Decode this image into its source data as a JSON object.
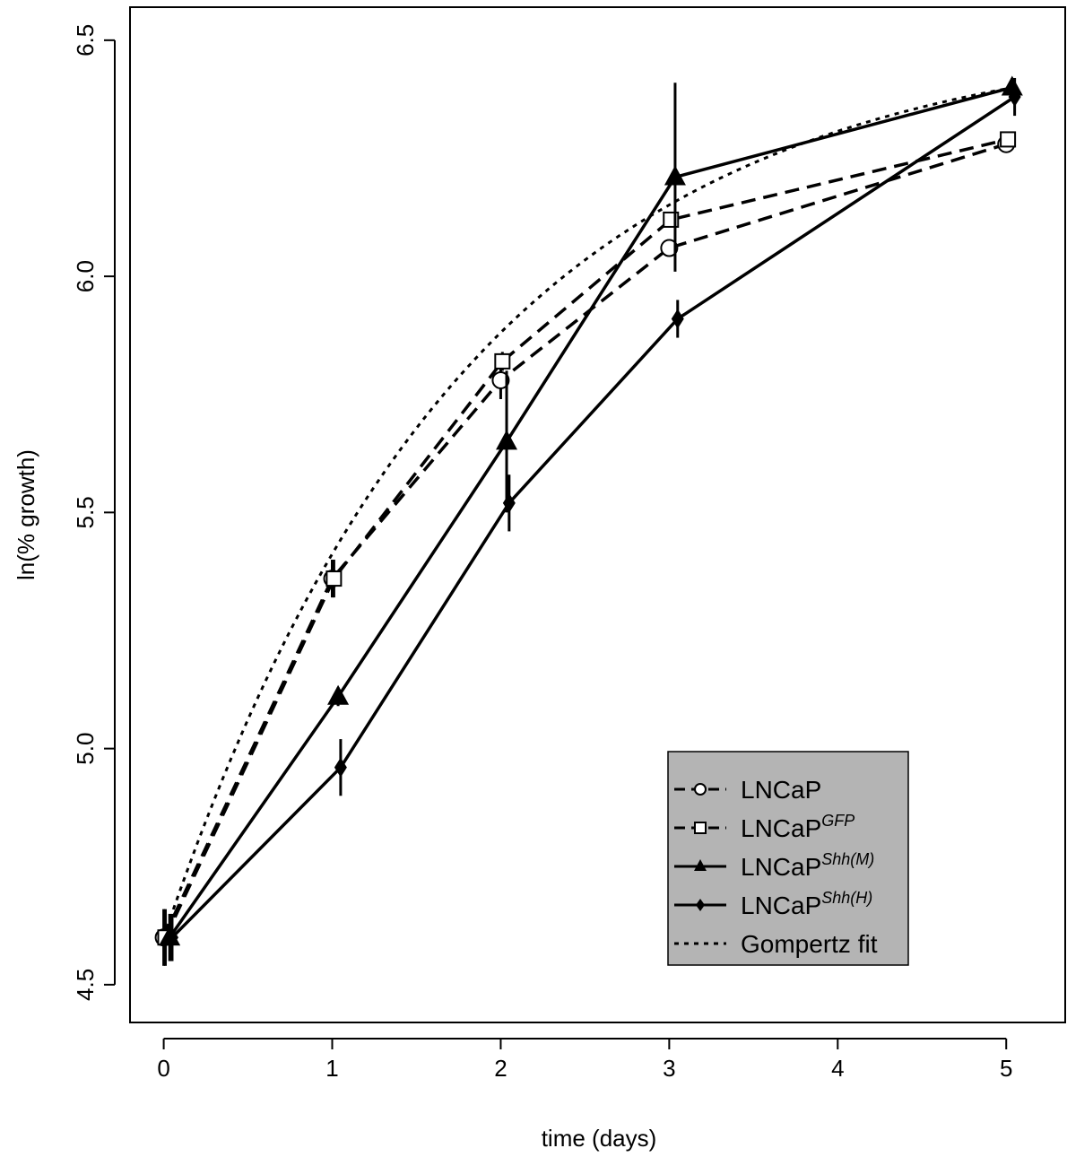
{
  "chart_data": {
    "type": "line",
    "xlabel": "time (days)",
    "ylabel": "ln(% growth)",
    "xlim": [
      -0.2,
      5.35
    ],
    "ylim": [
      4.42,
      6.57
    ],
    "xticks": [
      "0",
      "1",
      "2",
      "3",
      "4",
      "5"
    ],
    "yticks": [
      "4.5",
      "5.0",
      "5.5",
      "6.0",
      "6.5"
    ],
    "grid": false,
    "legend_position": "bottom-right",
    "legend_background": "#b4b4b4",
    "series": [
      {
        "name": "LNCaP",
        "marker": "circle",
        "line": "dashed",
        "points": [
          {
            "x": 0,
            "y": 4.6,
            "err": 0.06
          },
          {
            "x": 1,
            "y": 5.36,
            "err": 0.04
          },
          {
            "x": 2,
            "y": 5.78,
            "err": 0.04
          },
          {
            "x": 3,
            "y": 6.06,
            "err": 0.0
          },
          {
            "x": 5,
            "y": 6.28,
            "err": 0.0
          }
        ]
      },
      {
        "name": "LNCaP",
        "sup": "GFP",
        "marker": "square",
        "line": "dashed",
        "points": [
          {
            "x": 0,
            "y": 4.6,
            "err": 0.06
          },
          {
            "x": 1,
            "y": 5.36,
            "err": 0.04
          },
          {
            "x": 2,
            "y": 5.82,
            "err": 0.02
          },
          {
            "x": 3,
            "y": 6.12,
            "err": 0.0
          },
          {
            "x": 5,
            "y": 6.29,
            "err": 0.0
          }
        ]
      },
      {
        "name": "LNCaP",
        "sup": "Shh(M)",
        "marker": "triangle",
        "line": "solid",
        "points": [
          {
            "x": 0,
            "y": 4.6,
            "err": 0.05
          },
          {
            "x": 1,
            "y": 5.11,
            "err": 0.02
          },
          {
            "x": 2,
            "y": 5.65,
            "err": 0.15
          },
          {
            "x": 3,
            "y": 6.21,
            "err": 0.2
          },
          {
            "x": 5,
            "y": 6.4,
            "err": 0.02
          }
        ]
      },
      {
        "name": "LNCaP",
        "sup": "Shh(H)",
        "marker": "diamond",
        "line": "solid",
        "points": [
          {
            "x": 0,
            "y": 4.6,
            "err": 0.05
          },
          {
            "x": 1,
            "y": 4.96,
            "err": 0.06
          },
          {
            "x": 2,
            "y": 5.52,
            "err": 0.06
          },
          {
            "x": 3,
            "y": 5.91,
            "err": 0.04
          },
          {
            "x": 5,
            "y": 6.38,
            "err": 0.04
          }
        ]
      },
      {
        "name": "Gompertz fit",
        "marker": "none",
        "line": "dotted",
        "curve": {
          "y0": 4.6,
          "y_inf": 6.52,
          "k": 0.55
        },
        "x_range": [
          0,
          5
        ]
      }
    ]
  }
}
